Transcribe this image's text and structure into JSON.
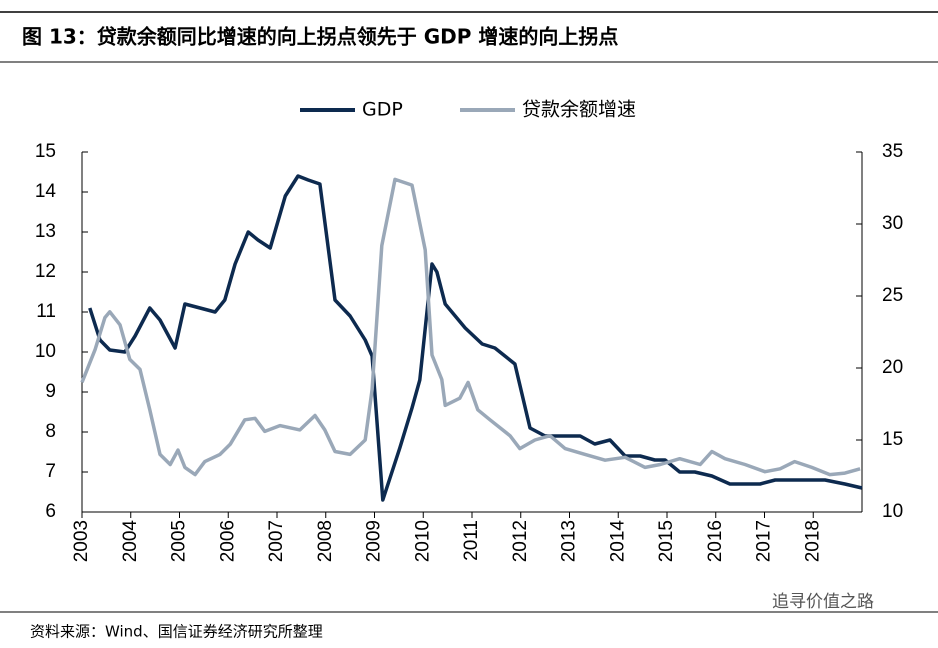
{
  "chart_data": {
    "type": "line",
    "title": "图 13：贷款余额同比增速的向上拐点领先于 GDP 增速的向上拐点",
    "xlim": [
      2003,
      2019
    ],
    "xticks": [
      2003,
      2004,
      2005,
      2006,
      2007,
      2008,
      2009,
      2010,
      2011,
      2012,
      2013,
      2014,
      2015,
      2016,
      2017,
      2018
    ],
    "ylim": [
      6,
      15
    ],
    "yticks": [
      6,
      7,
      8,
      9,
      10,
      11,
      12,
      13,
      14,
      15
    ],
    "y2lim": [
      10,
      35
    ],
    "y2ticks": [
      10,
      15,
      20,
      25,
      30,
      35
    ],
    "legend": "top",
    "series": [
      {
        "name": "GDP",
        "color": "#0d2a4f",
        "axis": "y",
        "x": [
          2003.16,
          2003.37,
          2003.57,
          2003.88,
          2004.09,
          2004.39,
          2004.6,
          2004.91,
          2005.11,
          2005.42,
          2005.73,
          2005.93,
          2006.14,
          2006.41,
          2006.61,
          2006.86,
          2007.17,
          2007.43,
          2007.64,
          2007.88,
          2008.19,
          2008.5,
          2008.81,
          2008.95,
          2009.17,
          2009.52,
          2009.77,
          2009.93,
          2010.18,
          2010.28,
          2010.45,
          2010.86,
          2011.21,
          2011.47,
          2011.88,
          2012.19,
          2012.5,
          2012.91,
          2013.22,
          2013.52,
          2013.83,
          2014.14,
          2014.45,
          2014.75,
          2014.96,
          2015.26,
          2015.57,
          2015.92,
          2016.29,
          2016.91,
          2017.22,
          2017.93,
          2018.24,
          2018.65,
          2019.0
        ],
        "values": [
          11.1,
          10.3,
          10.05,
          10,
          10.4,
          11.1,
          10.8,
          10.1,
          11.2,
          11.1,
          11.0,
          11.3,
          12.2,
          13.0,
          12.8,
          12.6,
          13.9,
          14.4,
          14.3,
          14.2,
          11.3,
          10.9,
          10.3,
          9.9,
          6.3,
          7.6,
          8.6,
          9.3,
          12.2,
          12.0,
          11.2,
          10.6,
          10.2,
          10.1,
          9.7,
          8.1,
          7.9,
          7.9,
          7.9,
          7.7,
          7.8,
          7.4,
          7.4,
          7.3,
          7.3,
          7.0,
          7.0,
          6.9,
          6.7,
          6.7,
          6.8,
          6.8,
          6.8,
          6.7,
          6.6
        ]
      },
      {
        "name": "贷款余额增速",
        "color": "#9aa8b8",
        "axis": "y2",
        "x": [
          2003.0,
          2003.27,
          2003.47,
          2003.57,
          2003.78,
          2003.98,
          2004.19,
          2004.39,
          2004.6,
          2004.81,
          2004.97,
          2005.11,
          2005.32,
          2005.52,
          2005.83,
          2006.04,
          2006.34,
          2006.55,
          2006.75,
          2007.06,
          2007.47,
          2007.78,
          2007.98,
          2008.19,
          2008.5,
          2008.81,
          2008.95,
          2009.15,
          2009.42,
          2009.77,
          2010.04,
          2010.18,
          2010.38,
          2010.45,
          2010.75,
          2010.92,
          2011.12,
          2011.37,
          2011.78,
          2011.98,
          2012.29,
          2012.6,
          2012.91,
          2013.32,
          2013.73,
          2014.14,
          2014.55,
          2014.86,
          2015.26,
          2015.68,
          2015.92,
          2016.19,
          2016.6,
          2017.01,
          2017.32,
          2017.62,
          2017.97,
          2018.34,
          2018.65,
          2018.96
        ],
        "values": [
          19.0,
          21.3,
          23.5,
          23.9,
          23.0,
          20.6,
          19.9,
          17.1,
          14.0,
          13.3,
          14.3,
          13.1,
          12.6,
          13.5,
          14.0,
          14.7,
          16.4,
          16.5,
          15.6,
          16.0,
          15.7,
          16.7,
          15.7,
          14.2,
          14.0,
          15.0,
          18.5,
          28.5,
          33.1,
          32.7,
          28.2,
          20.9,
          19.2,
          17.4,
          17.9,
          19.0,
          17.1,
          16.4,
          15.3,
          14.4,
          15.0,
          15.3,
          14.4,
          14.0,
          13.6,
          13.8,
          13.1,
          13.3,
          13.7,
          13.3,
          14.2,
          13.7,
          13.3,
          12.8,
          13.0,
          13.5,
          13.1,
          12.6,
          12.7,
          13.0
        ]
      }
    ]
  },
  "footer": {
    "source": "资料来源：Wind、国信证券经济研究所整理",
    "watermark": "追寻价值之路"
  }
}
